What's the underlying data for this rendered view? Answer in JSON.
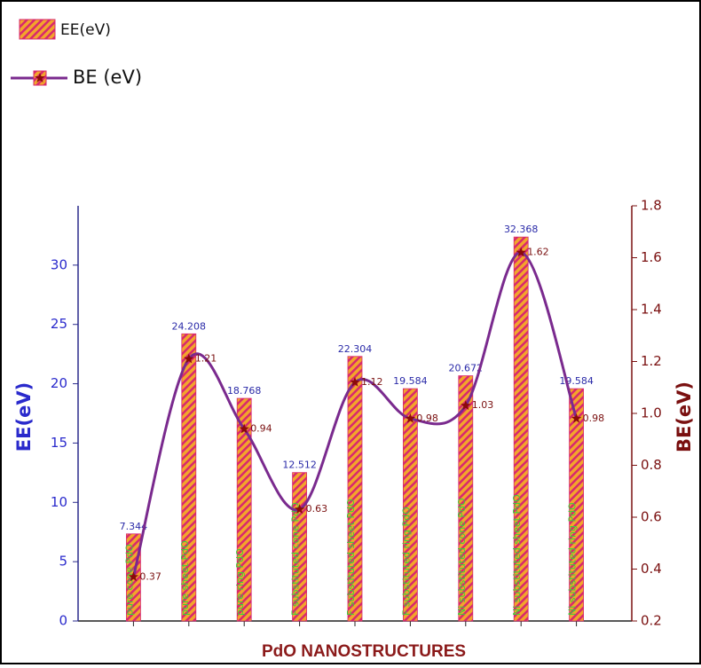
{
  "chart_data": {
    "type": "bar",
    "categories": [
      "pure cone PdO",
      "pure sheet PdO",
      "pure ring PdO",
      "F substituted cone PdO",
      "F substituted sheet PdO",
      "F substituted ring PdO",
      "Ni substituted cone PdO",
      "Ni substituted sheet PdO",
      "Ni substituted ring PdO"
    ],
    "series": [
      {
        "name": "EE(eV)",
        "type": "bar",
        "color": "#f2a52c",
        "hatch_color": "#d8286e",
        "label_color": "#2a2aa8",
        "values": [
          7.344,
          24.208,
          18.768,
          12.512,
          22.304,
          19.584,
          20.672,
          32.368,
          19.584
        ]
      },
      {
        "name": "BE (eV)",
        "type": "line",
        "axis": "y2",
        "color": "#7a2a8e",
        "marker_color": "#8b0a0a",
        "label_color": "#7a1010",
        "values": [
          0.37,
          1.21,
          0.94,
          0.63,
          1.12,
          0.98,
          1.03,
          1.62,
          0.98
        ]
      }
    ],
    "xlabel": "PdO NANOSTRUCTURES",
    "ylabel": "EE(eV)",
    "y2label": "BE(eV)",
    "ylim": [
      0,
      35
    ],
    "yticks": [
      0,
      5,
      10,
      15,
      20,
      25,
      30
    ],
    "y2lim": [
      0.2,
      1.8
    ],
    "y2ticks": [
      0.2,
      0.4,
      0.6,
      0.8,
      {
        "value": 1,
        "label": "1.0"
      },
      1.2,
      1.4,
      1.6,
      1.8
    ],
    "category_label_color": "#3ccf3c",
    "legend": "upper left"
  }
}
